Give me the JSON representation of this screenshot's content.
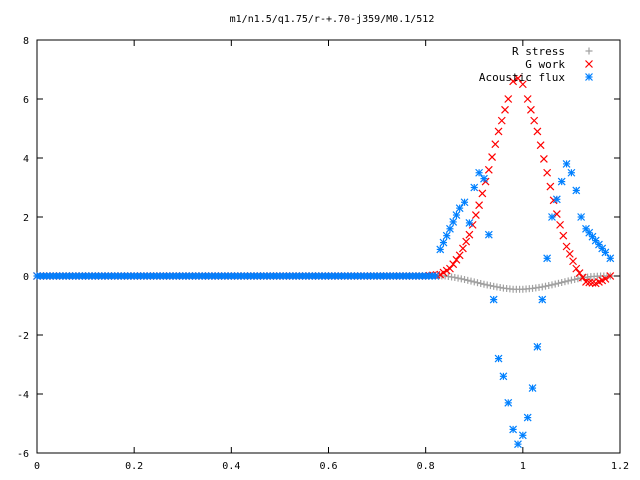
{
  "chart_data": {
    "type": "scatter",
    "title": "m1/n1.5/q1.75/r-+.70-j359/M0.1/512",
    "xlabel": "",
    "ylabel": "",
    "xlim": [
      0,
      1.2
    ],
    "ylim": [
      -6,
      8
    ],
    "x_ticks": [
      "0",
      "0.2",
      "0.4",
      "0.6",
      "0.8",
      "1",
      "1.2"
    ],
    "y_ticks": [
      "-6",
      "-4",
      "-2",
      "0",
      "2",
      "4",
      "6",
      "8"
    ],
    "grid": false,
    "legend_position": "top-right",
    "series": [
      {
        "name": "R stress",
        "color": "#a0a0a0",
        "marker": "plus",
        "points": [
          [
            0.0,
            0
          ],
          [
            0.1,
            0
          ],
          [
            0.2,
            0
          ],
          [
            0.3,
            0
          ],
          [
            0.4,
            0
          ],
          [
            0.5,
            0
          ],
          [
            0.6,
            0
          ],
          [
            0.7,
            0
          ],
          [
            0.8,
            0
          ],
          [
            0.84,
            0
          ],
          [
            0.86,
            -0.05
          ],
          [
            0.88,
            -0.12
          ],
          [
            0.9,
            -0.2
          ],
          [
            0.92,
            -0.28
          ],
          [
            0.94,
            -0.35
          ],
          [
            0.96,
            -0.41
          ],
          [
            0.98,
            -0.45
          ],
          [
            1.0,
            -0.45
          ],
          [
            1.02,
            -0.42
          ],
          [
            1.04,
            -0.37
          ],
          [
            1.06,
            -0.3
          ],
          [
            1.08,
            -0.22
          ],
          [
            1.1,
            -0.14
          ],
          [
            1.12,
            -0.07
          ],
          [
            1.14,
            -0.02
          ],
          [
            1.16,
            0
          ],
          [
            1.18,
            0
          ]
        ]
      },
      {
        "name": "G work",
        "color": "#ff0000",
        "marker": "x",
        "points": [
          [
            0.0,
            0
          ],
          [
            0.2,
            0
          ],
          [
            0.4,
            0
          ],
          [
            0.6,
            0
          ],
          [
            0.8,
            0
          ],
          [
            0.83,
            0.05
          ],
          [
            0.85,
            0.25
          ],
          [
            0.87,
            0.7
          ],
          [
            0.89,
            1.4
          ],
          [
            0.91,
            2.4
          ],
          [
            0.93,
            3.6
          ],
          [
            0.95,
            4.9
          ],
          [
            0.97,
            6.0
          ],
          [
            0.98,
            6.6
          ],
          [
            0.99,
            6.7
          ],
          [
            1.0,
            6.5
          ],
          [
            1.01,
            6.0
          ],
          [
            1.03,
            4.9
          ],
          [
            1.05,
            3.5
          ],
          [
            1.07,
            2.1
          ],
          [
            1.09,
            1.0
          ],
          [
            1.11,
            0.25
          ],
          [
            1.13,
            -0.2
          ],
          [
            1.15,
            -0.25
          ],
          [
            1.17,
            -0.1
          ],
          [
            1.18,
            0
          ]
        ]
      },
      {
        "name": "Acoustic flux",
        "color": "#0080ff",
        "marker": "asterisk",
        "points": [
          [
            0.0,
            0
          ],
          [
            0.1,
            0
          ],
          [
            0.2,
            0
          ],
          [
            0.3,
            0
          ],
          [
            0.4,
            0
          ],
          [
            0.5,
            0
          ],
          [
            0.6,
            0
          ],
          [
            0.7,
            0
          ],
          [
            0.8,
            0
          ],
          [
            0.82,
            0
          ],
          [
            0.83,
            0.9
          ],
          [
            0.85,
            1.6
          ],
          [
            0.87,
            2.3
          ],
          [
            0.88,
            2.5
          ],
          [
            0.89,
            1.8
          ],
          [
            0.9,
            3.0
          ],
          [
            0.91,
            3.5
          ],
          [
            0.92,
            3.3
          ],
          [
            0.93,
            1.4
          ],
          [
            0.94,
            -0.8
          ],
          [
            0.95,
            -2.8
          ],
          [
            0.96,
            -3.4
          ],
          [
            0.97,
            -4.3
          ],
          [
            0.98,
            -5.2
          ],
          [
            0.99,
            -5.7
          ],
          [
            1.0,
            -5.4
          ],
          [
            1.01,
            -4.8
          ],
          [
            1.02,
            -3.8
          ],
          [
            1.03,
            -2.4
          ],
          [
            1.04,
            -0.8
          ],
          [
            1.05,
            0.6
          ],
          [
            1.06,
            2.0
          ],
          [
            1.07,
            2.6
          ],
          [
            1.08,
            3.2
          ],
          [
            1.09,
            3.8
          ],
          [
            1.1,
            3.5
          ],
          [
            1.11,
            2.9
          ],
          [
            1.12,
            2.0
          ],
          [
            1.13,
            1.6
          ],
          [
            1.15,
            1.2
          ],
          [
            1.17,
            0.8
          ],
          [
            1.18,
            0.6
          ]
        ]
      }
    ]
  }
}
